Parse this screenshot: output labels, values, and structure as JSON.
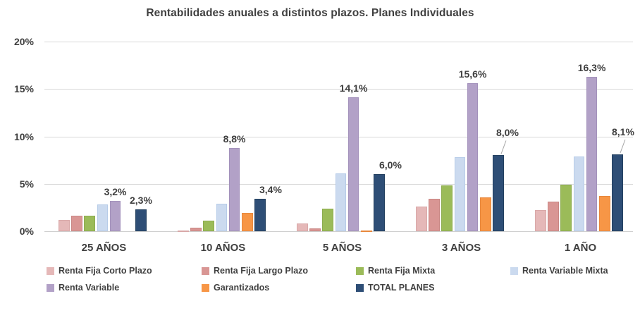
{
  "title": "Rentabilidades anuales a distintos plazos. Planes Individuales",
  "chart_data": {
    "type": "bar",
    "title": "Rentabilidades anuales a distintos plazos. Planes Individuales",
    "categories": [
      "25 AÑOS",
      "10 AÑOS",
      "5 AÑOS",
      "3 AÑOS",
      "1 AÑO"
    ],
    "series": [
      {
        "name": "Renta Fija Corto Plazo",
        "color": "#E5B8B8",
        "border": "#D9A8A8",
        "values": [
          1.2,
          0.1,
          0.8,
          2.6,
          2.2
        ]
      },
      {
        "name": "Renta Fija Largo Plazo",
        "color": "#D99694",
        "border": "#C98784",
        "values": [
          1.6,
          0.4,
          0.3,
          3.4,
          3.1
        ]
      },
      {
        "name": "Renta Fija Mixta",
        "color": "#9BBB59",
        "border": "#8CAC4E",
        "values": [
          1.6,
          1.1,
          2.4,
          4.8,
          4.9
        ]
      },
      {
        "name": "Renta Variable Mixta",
        "color": "#CBDAEF",
        "border": "#B7CCE8",
        "values": [
          2.8,
          2.9,
          6.1,
          7.8,
          7.9
        ]
      },
      {
        "name": "Renta Variable",
        "color": "#B2A1C7",
        "border": "#A391BB",
        "values": [
          3.2,
          8.8,
          14.1,
          15.6,
          16.3
        ],
        "labels": [
          "3,2%",
          "8,8%",
          "14,1%",
          "15,6%",
          "16,3%"
        ]
      },
      {
        "name": "Garantizados",
        "color": "#F79646",
        "border": "#E8883C",
        "values": [
          null,
          1.9,
          0.1,
          3.6,
          3.7
        ]
      },
      {
        "name": "TOTAL PLANES",
        "color": "#2E4E76",
        "border": "#23405F",
        "values": [
          2.3,
          3.4,
          6.0,
          8.0,
          8.1
        ],
        "labels": [
          "2,3%",
          "3,4%",
          "6,0%",
          "8,0%",
          "8,1%"
        ]
      }
    ],
    "y_axis": {
      "min": 0,
      "max": 20,
      "step": 5,
      "ticks": [
        "20%",
        "15%",
        "10%",
        "5%",
        "0%"
      ]
    },
    "grid": true,
    "legend_position": "bottom"
  },
  "colors": {
    "text": "#3f3f3f",
    "gridline": "#d9d9d9",
    "leader_line": "#a6a6a6",
    "background": "#ffffff"
  }
}
